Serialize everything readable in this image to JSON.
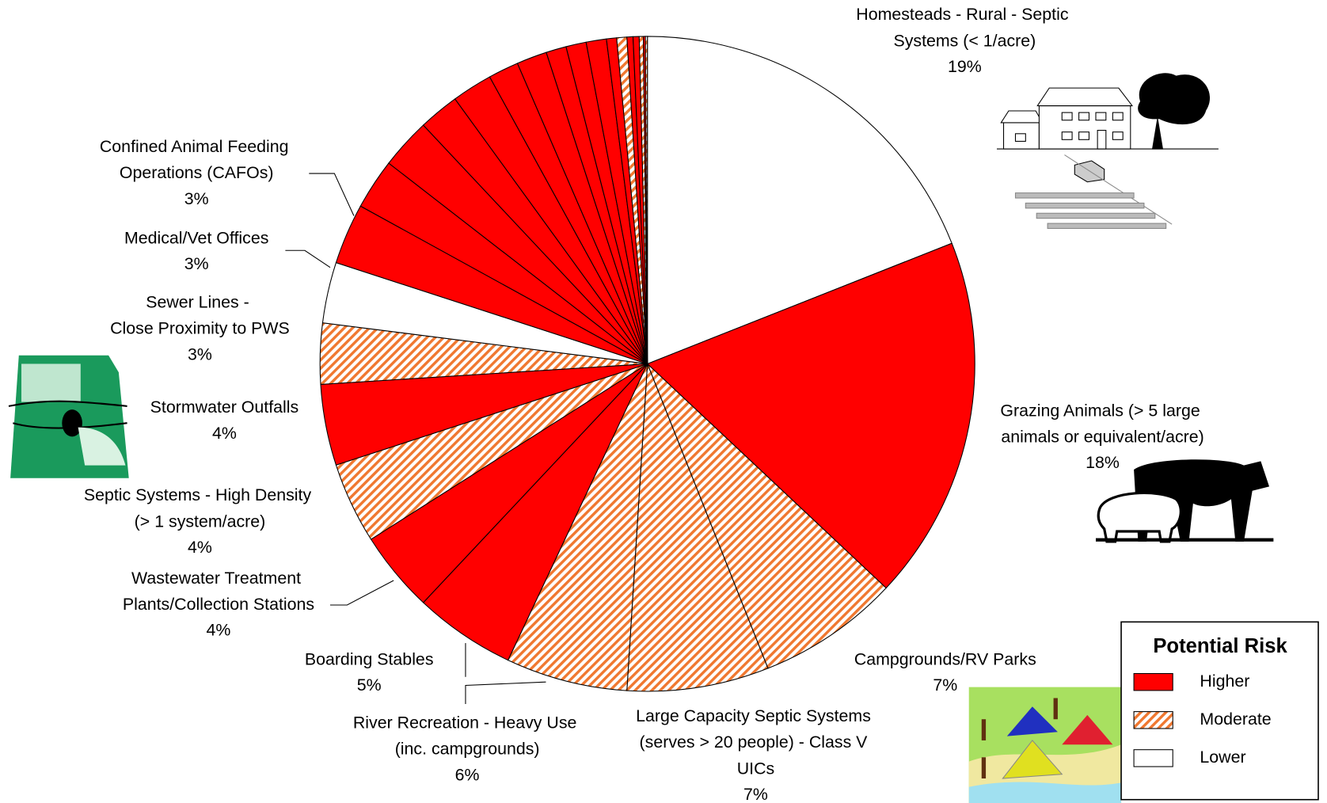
{
  "chart_data": {
    "type": "pie",
    "categories": [
      "Homesteads - Rural - Septic Systems (< 1/acre)",
      "Grazing Animals (> 5 large animals or equivalent/acre)",
      "Campgrounds/RV Parks",
      "Large Capacity Septic Systems (serves > 20 people) - Class V UICs",
      "River Recreation - Heavy Use (inc. campgrounds)",
      "Boarding Stables",
      "Wastewater Treatment Plants/Collection Stations",
      "Septic Systems - High Density (> 1 system/acre)",
      "Stormwater Outfalls",
      "Sewer Lines - Close Proximity to PWS",
      "Medical/Vet Offices",
      "Confined Animal Feeding Operations (CAFOs)",
      null,
      null,
      null,
      null,
      null,
      null,
      null,
      null,
      null,
      null,
      null,
      null,
      null,
      null,
      null,
      null
    ],
    "values": [
      19,
      18,
      7,
      7,
      6,
      5,
      4,
      4,
      4,
      3,
      3,
      3,
      2.5,
      2.5,
      2,
      2,
      1.5,
      1.5,
      1,
      1,
      1,
      0.5,
      0.5,
      0.3,
      0.3,
      0.2,
      0.1,
      0.1
    ],
    "value_labels": [
      "19%",
      "18%",
      "7%",
      "7%",
      "6%",
      "5%",
      "4%",
      "4%",
      "4%",
      "3%",
      "3%",
      "3%",
      null,
      null,
      null,
      null,
      null,
      null,
      null,
      null,
      null,
      null,
      null,
      null,
      null,
      null,
      null,
      null
    ],
    "slice_risk": [
      2,
      0,
      1,
      1,
      1,
      0,
      0,
      1,
      0,
      1,
      2,
      0,
      0,
      0,
      0,
      0,
      0,
      0,
      0,
      0,
      0,
      0,
      1,
      0,
      0,
      1,
      0,
      1
    ],
    "legend": {
      "title": "Potential Risk",
      "position": "lower right",
      "entries": [
        {
          "name": "Higher",
          "color": "#ff0000",
          "hatched": false
        },
        {
          "name": "Moderate",
          "color": "#f07830",
          "hatched": true
        },
        {
          "name": "Lower",
          "color": "#ffffff",
          "hatched": false
        }
      ]
    }
  }
}
